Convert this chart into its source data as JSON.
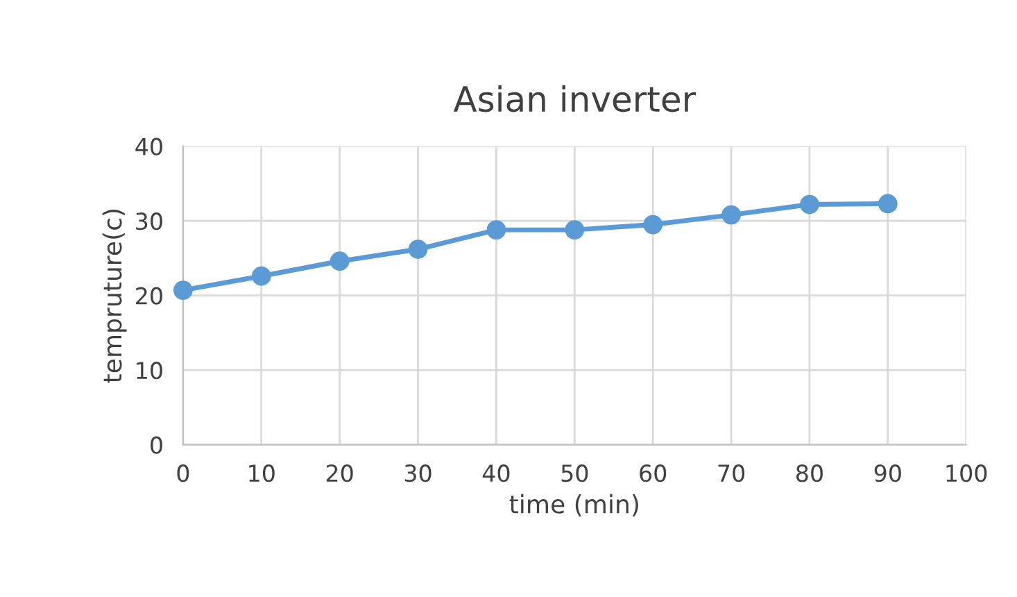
{
  "chart_data": {
    "type": "line",
    "title": "Asian inverter",
    "xlabel": "time (min)",
    "ylabel": "tempruture(c)",
    "x": [
      0,
      10,
      20,
      30,
      40,
      50,
      60,
      70,
      80,
      90
    ],
    "series": [
      {
        "color": "#5b9bd5",
        "values": [
          20.7,
          22.6,
          24.6,
          26.2,
          28.8,
          28.8,
          29.5,
          30.8,
          32.2,
          32.3
        ]
      }
    ],
    "xlim": [
      0,
      100
    ],
    "xticks": [
      0,
      10,
      20,
      30,
      40,
      50,
      60,
      70,
      80,
      90,
      100
    ],
    "ylim": [
      0,
      40
    ],
    "yticks": [
      0,
      10,
      20,
      30,
      40
    ],
    "grid": true,
    "marker": "circle",
    "line_style": "solid"
  }
}
